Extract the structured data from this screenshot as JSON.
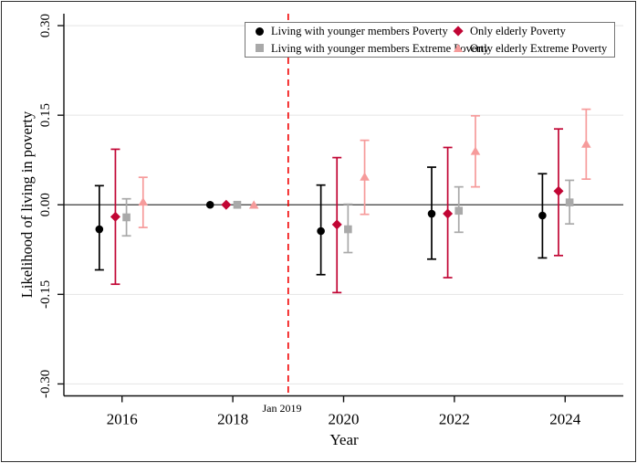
{
  "figure": {
    "background": "#ffffff",
    "border_color": "#2e2e2e"
  },
  "chart_data": {
    "type": "scatter",
    "title": "",
    "xlabel": "Year",
    "ylabel": "Likelihood of living in poverty",
    "xlim": [
      2014.95,
      2025.05
    ],
    "ylim": [
      -0.32,
      0.32
    ],
    "xticks": [
      2016,
      2018,
      2020,
      2022,
      2024
    ],
    "yticks": [
      0.3,
      0.15,
      0.0,
      -0.15,
      -0.3
    ],
    "ytick_labels": [
      "0.30",
      "0.15",
      "0.00",
      "-0.15",
      "-0.30"
    ],
    "grid": "horizontal",
    "gridline_color": "#e4e4e4",
    "zero_line_color": "#3a3a3a",
    "axis_color": "#111111",
    "reference_line": {
      "x": 2019,
      "label": "Jan 2019",
      "color": "#f20000",
      "style": "dashed"
    },
    "legend": {
      "position": "top-inside",
      "columns": 2,
      "border_color": "#757575"
    },
    "x": [
      2016,
      2018,
      2020,
      2022,
      2024
    ],
    "reference_year": 2018,
    "series": [
      {
        "name": "Living with younger members Poverty",
        "marker": "circle",
        "color": "#000000",
        "x_offset": -0.41,
        "estimates": [
          -0.041,
          0,
          -0.044,
          -0.015,
          -0.018
        ],
        "ci_low": [
          -0.109,
          0,
          -0.117,
          -0.091,
          -0.089
        ],
        "ci_high": [
          0.032,
          0,
          0.033,
          0.063,
          0.052
        ]
      },
      {
        "name": "Only elderly Poverty",
        "marker": "diamond",
        "color": "#c10534",
        "x_offset": -0.12,
        "estimates": [
          -0.02,
          0,
          -0.033,
          -0.015,
          0.023
        ],
        "ci_low": [
          -0.133,
          0,
          -0.147,
          -0.122,
          -0.085
        ],
        "ci_high": [
          0.093,
          0,
          0.079,
          0.096,
          0.127
        ]
      },
      {
        "name": "Living with younger members Extreme Poverty",
        "marker": "square",
        "color": "#a9a9a9",
        "x_offset": 0.08,
        "estimates": [
          -0.021,
          0,
          -0.041,
          -0.01,
          0.004
        ],
        "ci_low": [
          -0.052,
          0,
          -0.08,
          -0.046,
          -0.032
        ],
        "ci_high": [
          0.01,
          0,
          0.001,
          0.03,
          0.041
        ]
      },
      {
        "name": "Only elderly Extreme Poverty",
        "marker": "triangle",
        "color": "#f69b9b",
        "x_offset": 0.38,
        "estimates": [
          0.005,
          0,
          0.047,
          0.09,
          0.102
        ],
        "ci_low": [
          -0.038,
          0,
          -0.016,
          0.03,
          0.043
        ],
        "ci_high": [
          0.046,
          0,
          0.108,
          0.149,
          0.16
        ]
      }
    ]
  }
}
